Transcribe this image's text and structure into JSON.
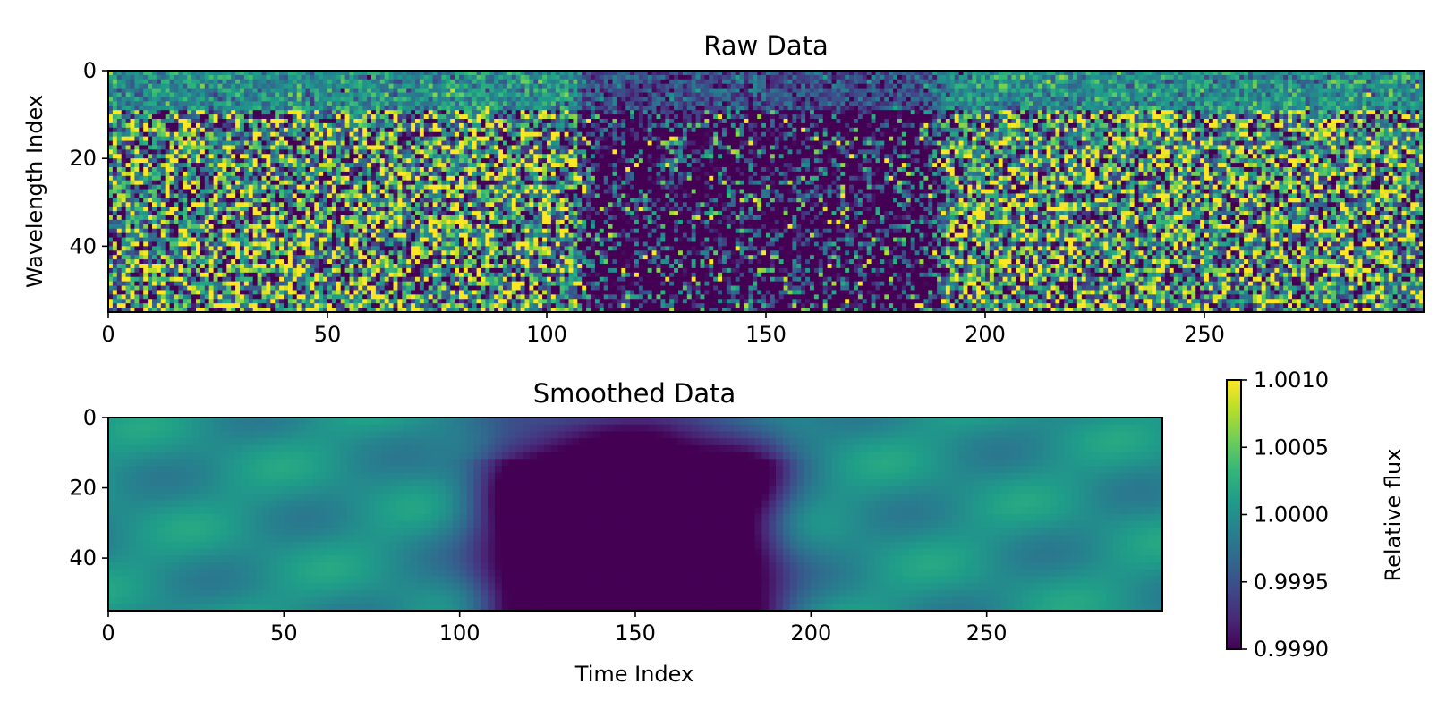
{
  "chart_data": [
    {
      "type": "heatmap",
      "title": "Raw Data",
      "xlabel": "",
      "ylabel": "Wavelength Index",
      "x_range": [
        0,
        300
      ],
      "y_range": [
        0,
        55
      ],
      "y_inverted": true,
      "x_ticks": [
        0,
        50,
        100,
        150,
        200,
        250
      ],
      "y_ticks": [
        0,
        20,
        40
      ],
      "x_tick_labels": [
        "0",
        "50",
        "100",
        "150",
        "200",
        "250"
      ],
      "y_tick_labels": [
        "0",
        "20",
        "40"
      ],
      "colormap": "viridis",
      "color_range": [
        0.999,
        1.001
      ],
      "transit_window": [
        107,
        190
      ],
      "baseline_level": 1.0,
      "transit_depth_level": 0.999
    },
    {
      "type": "heatmap",
      "title": "Smoothed Data",
      "xlabel": "Time Index",
      "ylabel": "",
      "x_range": [
        0,
        300
      ],
      "y_range": [
        0,
        55
      ],
      "y_inverted": true,
      "x_ticks": [
        0,
        50,
        100,
        150,
        200,
        250
      ],
      "y_ticks": [
        0,
        20,
        40
      ],
      "x_tick_labels": [
        "0",
        "50",
        "100",
        "150",
        "200",
        "250"
      ],
      "y_tick_labels": [
        "0",
        "20",
        "40"
      ],
      "colormap": "viridis",
      "color_range": [
        0.999,
        1.001
      ],
      "transit_window": [
        107,
        190
      ],
      "colorbar": {
        "label": "Relative flux",
        "ticks": [
          1.001,
          1.0005,
          1.0,
          0.9995,
          0.999
        ],
        "tick_labels": [
          "1.0010",
          "1.0005",
          "1.0000",
          "0.9995",
          "0.9990"
        ]
      }
    }
  ],
  "colors": {
    "viridis": [
      "#440154",
      "#482878",
      "#3e4989",
      "#31688e",
      "#26828e",
      "#1f9e89",
      "#35b779",
      "#6ece58",
      "#b5de2b",
      "#fde725"
    ]
  }
}
